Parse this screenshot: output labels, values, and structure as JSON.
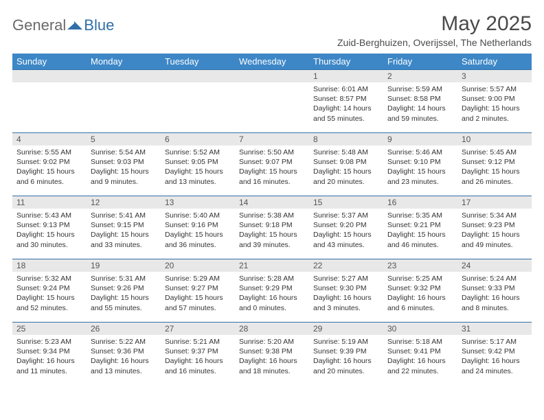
{
  "logo": {
    "word1": "General",
    "word2": "Blue"
  },
  "title": "May 2025",
  "location": "Zuid-Berghuizen, Overijssel, The Netherlands",
  "colors": {
    "header_bg": "#3d87c7",
    "header_text": "#ffffff",
    "row_border": "#2f6fa8",
    "daynum_bg": "#e8e8e8",
    "text": "#333333",
    "logo_gray": "#6a6a6a",
    "logo_blue": "#2f6fa8"
  },
  "weekdays": [
    "Sunday",
    "Monday",
    "Tuesday",
    "Wednesday",
    "Thursday",
    "Friday",
    "Saturday"
  ],
  "weeks": [
    [
      {
        "n": "",
        "sr": "",
        "ss": "",
        "dl": ""
      },
      {
        "n": "",
        "sr": "",
        "ss": "",
        "dl": ""
      },
      {
        "n": "",
        "sr": "",
        "ss": "",
        "dl": ""
      },
      {
        "n": "",
        "sr": "",
        "ss": "",
        "dl": ""
      },
      {
        "n": "1",
        "sr": "Sunrise: 6:01 AM",
        "ss": "Sunset: 8:57 PM",
        "dl": "Daylight: 14 hours and 55 minutes."
      },
      {
        "n": "2",
        "sr": "Sunrise: 5:59 AM",
        "ss": "Sunset: 8:58 PM",
        "dl": "Daylight: 14 hours and 59 minutes."
      },
      {
        "n": "3",
        "sr": "Sunrise: 5:57 AM",
        "ss": "Sunset: 9:00 PM",
        "dl": "Daylight: 15 hours and 2 minutes."
      }
    ],
    [
      {
        "n": "4",
        "sr": "Sunrise: 5:55 AM",
        "ss": "Sunset: 9:02 PM",
        "dl": "Daylight: 15 hours and 6 minutes."
      },
      {
        "n": "5",
        "sr": "Sunrise: 5:54 AM",
        "ss": "Sunset: 9:03 PM",
        "dl": "Daylight: 15 hours and 9 minutes."
      },
      {
        "n": "6",
        "sr": "Sunrise: 5:52 AM",
        "ss": "Sunset: 9:05 PM",
        "dl": "Daylight: 15 hours and 13 minutes."
      },
      {
        "n": "7",
        "sr": "Sunrise: 5:50 AM",
        "ss": "Sunset: 9:07 PM",
        "dl": "Daylight: 15 hours and 16 minutes."
      },
      {
        "n": "8",
        "sr": "Sunrise: 5:48 AM",
        "ss": "Sunset: 9:08 PM",
        "dl": "Daylight: 15 hours and 20 minutes."
      },
      {
        "n": "9",
        "sr": "Sunrise: 5:46 AM",
        "ss": "Sunset: 9:10 PM",
        "dl": "Daylight: 15 hours and 23 minutes."
      },
      {
        "n": "10",
        "sr": "Sunrise: 5:45 AM",
        "ss": "Sunset: 9:12 PM",
        "dl": "Daylight: 15 hours and 26 minutes."
      }
    ],
    [
      {
        "n": "11",
        "sr": "Sunrise: 5:43 AM",
        "ss": "Sunset: 9:13 PM",
        "dl": "Daylight: 15 hours and 30 minutes."
      },
      {
        "n": "12",
        "sr": "Sunrise: 5:41 AM",
        "ss": "Sunset: 9:15 PM",
        "dl": "Daylight: 15 hours and 33 minutes."
      },
      {
        "n": "13",
        "sr": "Sunrise: 5:40 AM",
        "ss": "Sunset: 9:16 PM",
        "dl": "Daylight: 15 hours and 36 minutes."
      },
      {
        "n": "14",
        "sr": "Sunrise: 5:38 AM",
        "ss": "Sunset: 9:18 PM",
        "dl": "Daylight: 15 hours and 39 minutes."
      },
      {
        "n": "15",
        "sr": "Sunrise: 5:37 AM",
        "ss": "Sunset: 9:20 PM",
        "dl": "Daylight: 15 hours and 43 minutes."
      },
      {
        "n": "16",
        "sr": "Sunrise: 5:35 AM",
        "ss": "Sunset: 9:21 PM",
        "dl": "Daylight: 15 hours and 46 minutes."
      },
      {
        "n": "17",
        "sr": "Sunrise: 5:34 AM",
        "ss": "Sunset: 9:23 PM",
        "dl": "Daylight: 15 hours and 49 minutes."
      }
    ],
    [
      {
        "n": "18",
        "sr": "Sunrise: 5:32 AM",
        "ss": "Sunset: 9:24 PM",
        "dl": "Daylight: 15 hours and 52 minutes."
      },
      {
        "n": "19",
        "sr": "Sunrise: 5:31 AM",
        "ss": "Sunset: 9:26 PM",
        "dl": "Daylight: 15 hours and 55 minutes."
      },
      {
        "n": "20",
        "sr": "Sunrise: 5:29 AM",
        "ss": "Sunset: 9:27 PM",
        "dl": "Daylight: 15 hours and 57 minutes."
      },
      {
        "n": "21",
        "sr": "Sunrise: 5:28 AM",
        "ss": "Sunset: 9:29 PM",
        "dl": "Daylight: 16 hours and 0 minutes."
      },
      {
        "n": "22",
        "sr": "Sunrise: 5:27 AM",
        "ss": "Sunset: 9:30 PM",
        "dl": "Daylight: 16 hours and 3 minutes."
      },
      {
        "n": "23",
        "sr": "Sunrise: 5:25 AM",
        "ss": "Sunset: 9:32 PM",
        "dl": "Daylight: 16 hours and 6 minutes."
      },
      {
        "n": "24",
        "sr": "Sunrise: 5:24 AM",
        "ss": "Sunset: 9:33 PM",
        "dl": "Daylight: 16 hours and 8 minutes."
      }
    ],
    [
      {
        "n": "25",
        "sr": "Sunrise: 5:23 AM",
        "ss": "Sunset: 9:34 PM",
        "dl": "Daylight: 16 hours and 11 minutes."
      },
      {
        "n": "26",
        "sr": "Sunrise: 5:22 AM",
        "ss": "Sunset: 9:36 PM",
        "dl": "Daylight: 16 hours and 13 minutes."
      },
      {
        "n": "27",
        "sr": "Sunrise: 5:21 AM",
        "ss": "Sunset: 9:37 PM",
        "dl": "Daylight: 16 hours and 16 minutes."
      },
      {
        "n": "28",
        "sr": "Sunrise: 5:20 AM",
        "ss": "Sunset: 9:38 PM",
        "dl": "Daylight: 16 hours and 18 minutes."
      },
      {
        "n": "29",
        "sr": "Sunrise: 5:19 AM",
        "ss": "Sunset: 9:39 PM",
        "dl": "Daylight: 16 hours and 20 minutes."
      },
      {
        "n": "30",
        "sr": "Sunrise: 5:18 AM",
        "ss": "Sunset: 9:41 PM",
        "dl": "Daylight: 16 hours and 22 minutes."
      },
      {
        "n": "31",
        "sr": "Sunrise: 5:17 AM",
        "ss": "Sunset: 9:42 PM",
        "dl": "Daylight: 16 hours and 24 minutes."
      }
    ]
  ]
}
